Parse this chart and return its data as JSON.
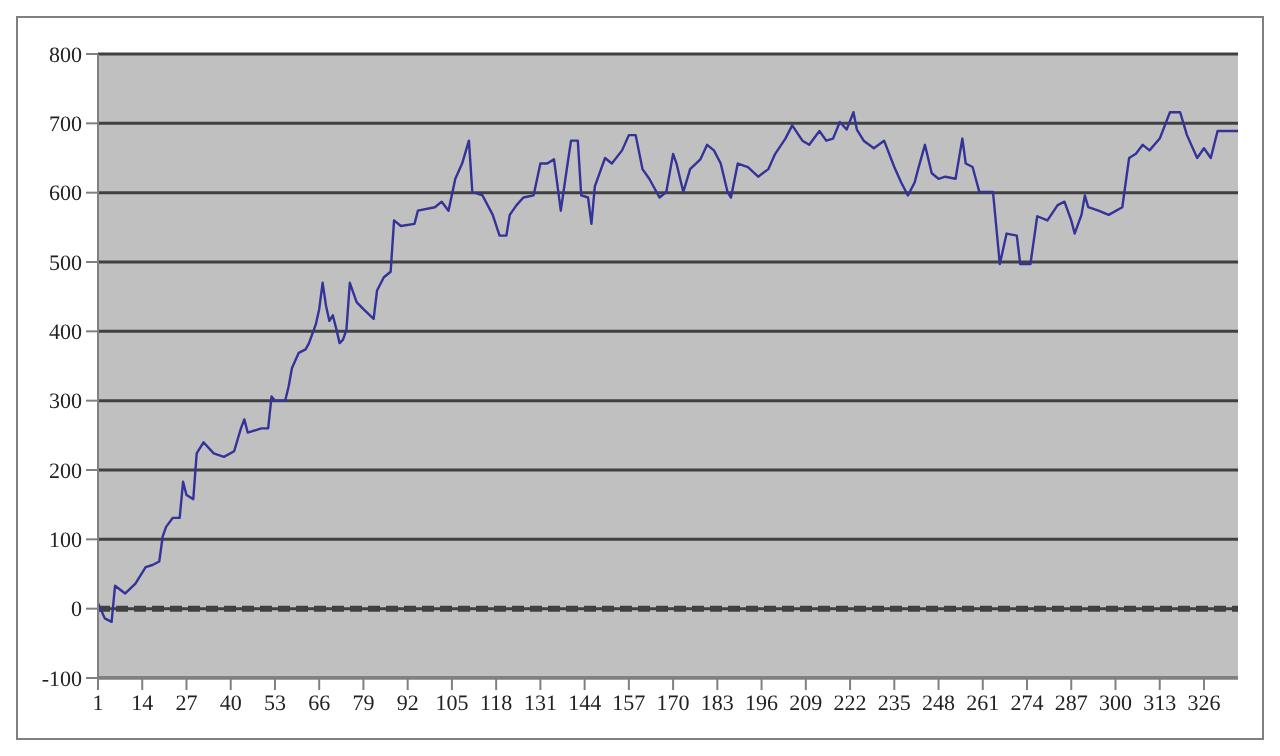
{
  "chart_data": {
    "type": "line",
    "x": [
      1,
      3,
      5,
      6,
      9,
      12,
      15,
      17,
      19,
      20,
      21,
      23,
      25,
      26,
      27,
      29,
      30,
      32,
      35,
      38,
      41,
      43,
      44,
      45,
      49,
      51,
      52,
      53,
      56,
      57,
      58,
      60,
      62,
      63,
      65,
      66,
      67,
      68,
      69,
      70,
      71,
      72,
      73,
      74,
      75,
      77,
      79,
      82,
      83,
      85,
      87,
      88,
      90,
      94,
      95,
      100,
      102,
      104,
      106,
      108,
      110,
      111,
      114,
      117,
      119,
      121,
      122,
      124,
      126,
      129,
      131,
      133,
      135,
      137,
      139,
      140,
      142,
      143,
      145,
      146,
      147,
      150,
      152,
      155,
      157,
      159,
      161,
      163,
      166,
      168,
      170,
      171,
      173,
      175,
      178,
      180,
      182,
      184,
      186,
      187,
      189,
      192,
      195,
      198,
      200,
      203,
      205,
      208,
      210,
      213,
      215,
      217,
      219,
      221,
      223,
      224,
      226,
      229,
      232,
      235,
      237,
      239,
      241,
      242,
      244,
      246,
      248,
      250,
      253,
      255,
      256,
      258,
      260,
      264,
      266,
      268,
      271,
      272,
      275,
      277,
      280,
      283,
      285,
      287,
      288,
      290,
      291,
      292,
      295,
      298,
      302,
      304,
      306,
      308,
      310,
      313,
      316,
      319,
      321,
      324,
      326,
      328,
      330,
      336
    ],
    "series": [
      {
        "color": "#333399",
        "values": [
          8,
          -14,
          -19,
          33,
          22,
          36,
          60,
          63,
          68,
          104,
          118,
          131,
          131,
          183,
          164,
          158,
          224,
          240,
          224,
          219,
          227,
          260,
          273,
          254,
          260,
          260,
          306,
          300,
          300,
          320,
          347,
          369,
          374,
          383,
          410,
          432,
          470,
          437,
          415,
          423,
          404,
          383,
          388,
          402,
          470,
          442,
          432,
          418,
          459,
          478,
          486,
          560,
          552,
          555,
          574,
          579,
          587,
          574,
          620,
          642,
          675,
          601,
          596,
          568,
          538,
          538,
          568,
          582,
          593,
          596,
          642,
          642,
          648,
          574,
          642,
          675,
          675,
          596,
          593,
          555,
          609,
          650,
          642,
          661,
          683,
          683,
          634,
          620,
          593,
          601,
          656,
          642,
          601,
          634,
          648,
          669,
          661,
          642,
          601,
          593,
          642,
          637,
          623,
          634,
          656,
          678,
          697,
          675,
          669,
          689,
          675,
          678,
          702,
          691,
          716,
          691,
          675,
          664,
          675,
          637,
          615,
          596,
          615,
          634,
          669,
          628,
          620,
          623,
          620,
          678,
          642,
          637,
          601,
          601,
          497,
          541,
          538,
          497,
          497,
          566,
          560,
          582,
          587,
          560,
          541,
          568,
          596,
          579,
          574,
          568,
          579,
          650,
          656,
          669,
          661,
          678,
          716,
          716,
          683,
          650,
          664,
          650,
          689,
          689
        ]
      }
    ],
    "xlim": [
      1,
      336
    ],
    "xticks": [
      1,
      14,
      27,
      40,
      53,
      66,
      79,
      92,
      105,
      118,
      131,
      144,
      157,
      170,
      183,
      196,
      209,
      222,
      235,
      248,
      261,
      274,
      287,
      300,
      313,
      326
    ],
    "ylim": [
      -100,
      800
    ],
    "yticks": [
      -100,
      0,
      100,
      200,
      300,
      400,
      500,
      600,
      700,
      800
    ],
    "grid": "y",
    "marker": "none",
    "line_style": "solid",
    "ref_lines": [
      {
        "axis": "y",
        "value": 0,
        "color": "#404040",
        "line_style": "dashed"
      }
    ]
  }
}
